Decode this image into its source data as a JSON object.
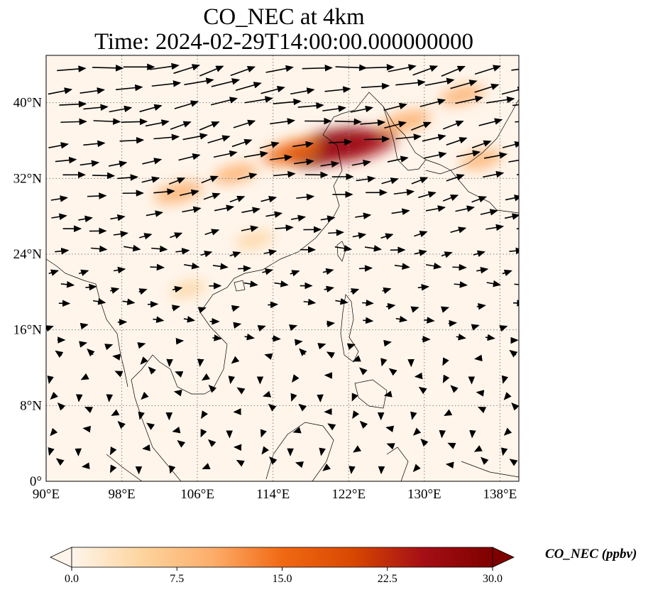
{
  "title_line1": "CO_NEC at 4km",
  "title_line2": "Time: 2024-02-29T14:00:00.000000000",
  "map": {
    "lon_range": [
      90,
      140
    ],
    "lat_range": [
      0,
      45
    ],
    "lon_ticks": [
      {
        "value": 90,
        "label": "90°E"
      },
      {
        "value": 98,
        "label": "98°E"
      },
      {
        "value": 106,
        "label": "106°E"
      },
      {
        "value": 114,
        "label": "114°E"
      },
      {
        "value": 122,
        "label": "122°E"
      },
      {
        "value": 130,
        "label": "130°E"
      },
      {
        "value": 138,
        "label": "138°E"
      }
    ],
    "lat_ticks": [
      {
        "value": 0,
        "label": "0°"
      },
      {
        "value": 8,
        "label": "8°N"
      },
      {
        "value": 16,
        "label": "16°N"
      },
      {
        "value": 24,
        "label": "24°N"
      },
      {
        "value": 32,
        "label": "32°N"
      },
      {
        "value": 40,
        "label": "40°N"
      }
    ],
    "gridlines": true,
    "background_color": "#fff5eb",
    "plume_centers": [
      {
        "lon": 120,
        "lat": 35.3,
        "value": 30
      },
      {
        "lon": 123,
        "lat": 35.5,
        "value": 24
      },
      {
        "lon": 116,
        "lat": 34.8,
        "value": 15
      },
      {
        "lon": 128,
        "lat": 38,
        "value": 12
      },
      {
        "lon": 104,
        "lat": 30.5,
        "value": 11
      },
      {
        "lon": 110,
        "lat": 32.5,
        "value": 9
      },
      {
        "lon": 134,
        "lat": 40.8,
        "value": 9
      },
      {
        "lon": 136,
        "lat": 34,
        "value": 8
      },
      {
        "lon": 112,
        "lat": 25.5,
        "value": 6
      },
      {
        "lon": 105,
        "lat": 20.3,
        "value": 5
      }
    ]
  },
  "colorbar": {
    "label": "CO_NEC (ppbv)",
    "min": 0.0,
    "max": 30.0,
    "extend": "both",
    "ticks": [
      "0.0",
      "7.5",
      "15.0",
      "22.5",
      "30.0"
    ],
    "colors": [
      "#fff5eb",
      "#fdd49e",
      "#fdae6b",
      "#f16913",
      "#d94801",
      "#a50f15",
      "#7f0000"
    ]
  }
}
